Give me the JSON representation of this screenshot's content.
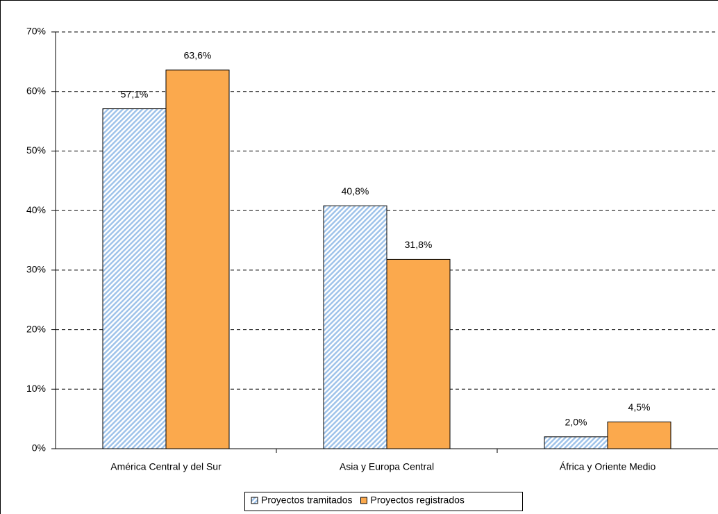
{
  "chart_data": {
    "type": "bar",
    "categories": [
      "América Central y del Sur",
      "Asia y Europa Central",
      "África y Oriente Medio"
    ],
    "series": [
      {
        "name": "Proyectos tramitados",
        "color": "#9fc3ea",
        "values": [
          57.1,
          40.8,
          2.0
        ],
        "value_labels": [
          "57,1%",
          "40,8%",
          "2,0%"
        ]
      },
      {
        "name": "Proyectos registrados",
        "color": "#fba94d",
        "values": [
          63.6,
          31.8,
          4.5
        ],
        "value_labels": [
          "63,6%",
          "31,8%",
          "4,5%"
        ]
      }
    ],
    "ylim": [
      0,
      70
    ],
    "yticks": [
      {
        "value": 0,
        "label": "0%"
      },
      {
        "value": 10,
        "label": "10%"
      },
      {
        "value": 20,
        "label": "20%"
      },
      {
        "value": 30,
        "label": "30%"
      },
      {
        "value": 40,
        "label": "40%"
      },
      {
        "value": 50,
        "label": "50%"
      },
      {
        "value": 60,
        "label": "60%"
      },
      {
        "value": 70,
        "label": "70%"
      }
    ],
    "grid": true,
    "legend": "bottom"
  }
}
